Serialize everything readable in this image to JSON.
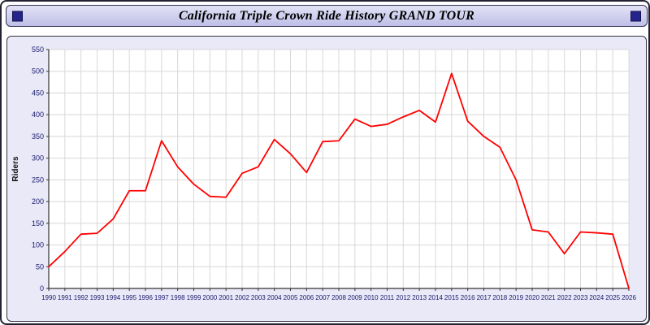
{
  "window": {
    "title": "California Triple Crown Ride History GRAND TOUR"
  },
  "chart_data": {
    "type": "line",
    "title": "California Triple Crown Ride History GRAND TOUR",
    "xlabel": "",
    "ylabel": "Riders",
    "ylim": [
      0,
      550
    ],
    "ytick_step": 50,
    "grid": true,
    "legend": "none",
    "line_color": "#ff0000",
    "x": [
      1990,
      1991,
      1992,
      1993,
      1994,
      1995,
      1996,
      1997,
      1998,
      1999,
      2000,
      2001,
      2002,
      2003,
      2004,
      2005,
      2006,
      2007,
      2008,
      2009,
      2010,
      2011,
      2012,
      2013,
      2014,
      2015,
      2016,
      2017,
      2018,
      2019,
      2020,
      2021,
      2022,
      2023,
      2024,
      2025,
      2026
    ],
    "series": [
      {
        "name": "Riders",
        "values": [
          50,
          85,
          125,
          127,
          160,
          225,
          225,
          340,
          280,
          240,
          212,
          210,
          265,
          280,
          343,
          310,
          267,
          338,
          340,
          390,
          373,
          378,
          395,
          410,
          383,
          495,
          385,
          350,
          325,
          250,
          135,
          130,
          80,
          130,
          128,
          125,
          0
        ]
      }
    ]
  },
  "style": {
    "plot_bg": "#ffffff",
    "grid_color": "#d8d8d8",
    "axis_color": "#333333",
    "tick_label_color": "#1a1a6e",
    "ylabel_color": "#111111"
  }
}
